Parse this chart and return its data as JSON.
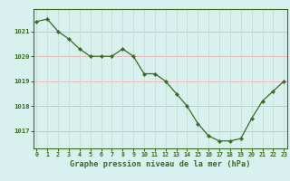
{
  "x": [
    0,
    1,
    2,
    3,
    4,
    5,
    6,
    7,
    8,
    9,
    10,
    11,
    12,
    13,
    14,
    15,
    16,
    17,
    18,
    19,
    20,
    21,
    22,
    23
  ],
  "y": [
    1021.4,
    1021.5,
    1021.0,
    1020.7,
    1020.3,
    1020.0,
    1020.0,
    1020.0,
    1020.3,
    1020.0,
    1019.3,
    1019.3,
    1019.0,
    1018.5,
    1018.0,
    1017.3,
    1016.8,
    1016.6,
    1016.6,
    1016.7,
    1017.5,
    1018.2,
    1018.6,
    1019.0
  ],
  "line_color": "#3a6b22",
  "marker_color": "#3a6b22",
  "bg_color": "#d8f0ee",
  "grid_color_v": "#c8e0d8",
  "grid_color_h": "#e8b8b8",
  "xlabel": "Graphe pression niveau de la mer (hPa)",
  "xlabel_color": "#3a6b22",
  "tick_color": "#3a6b22",
  "ylim": [
    1016.3,
    1021.9
  ],
  "yticks": [
    1017,
    1018,
    1019,
    1020,
    1021
  ],
  "xticks": [
    0,
    1,
    2,
    3,
    4,
    5,
    6,
    7,
    8,
    9,
    10,
    11,
    12,
    13,
    14,
    15,
    16,
    17,
    18,
    19,
    20,
    21,
    22,
    23
  ],
  "fig_w": 3.2,
  "fig_h": 2.0,
  "dpi": 100
}
